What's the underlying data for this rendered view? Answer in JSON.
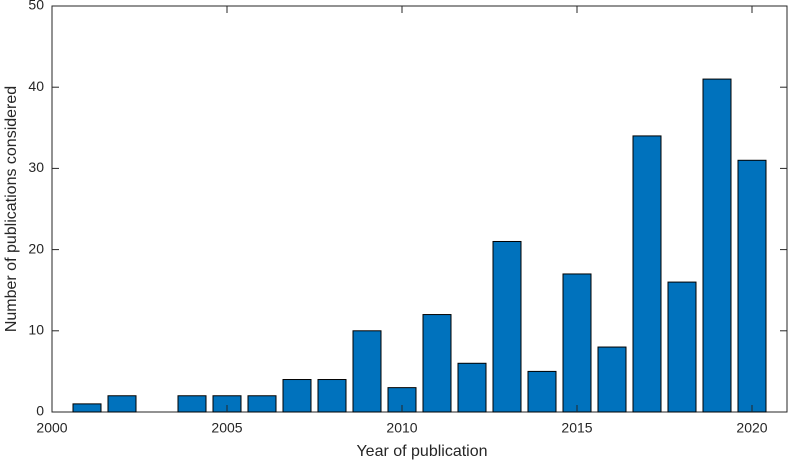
{
  "chart_data": {
    "type": "bar",
    "xlabel": "Year of publication",
    "ylabel": "Number of publications considered",
    "x": [
      2001,
      2002,
      2004,
      2005,
      2006,
      2007,
      2008,
      2009,
      2010,
      2011,
      2012,
      2013,
      2014,
      2015,
      2016,
      2017,
      2018,
      2019,
      2020
    ],
    "values": [
      1,
      2,
      2,
      2,
      2,
      4,
      4,
      10,
      3,
      12,
      6,
      21,
      5,
      17,
      8,
      34,
      16,
      41,
      31
    ],
    "color": "#0072bd",
    "xlim": [
      2000,
      2021
    ],
    "xticks": [
      2000,
      2005,
      2010,
      2015,
      2020
    ],
    "ylim": [
      0,
      50
    ],
    "yticks": [
      0,
      10,
      20,
      30,
      40,
      50
    ]
  }
}
